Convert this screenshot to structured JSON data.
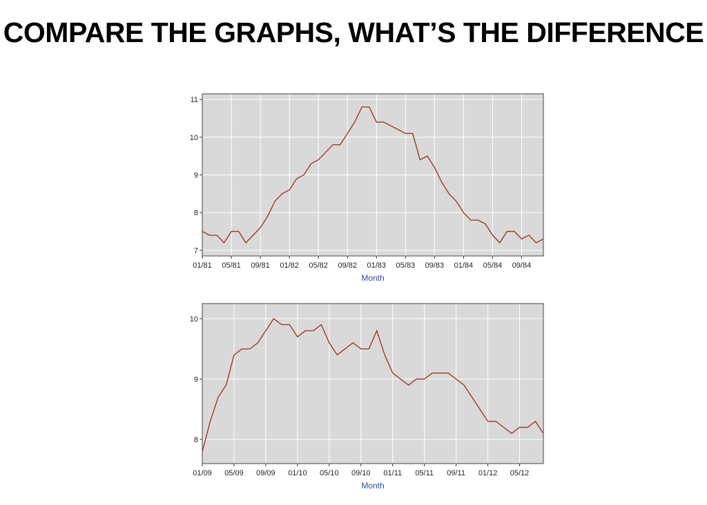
{
  "title": "COMPARE THE GRAPHS, WHAT’S THE DIFFERENCE",
  "colors": {
    "line": "#a33a22",
    "plot_bg": "#d9d9d9",
    "grid": "#ffffff",
    "axis_label": "#2a4ea0"
  },
  "chart_data": [
    {
      "type": "line",
      "title": "",
      "xlabel": "Month",
      "ylabel": "",
      "ylim": [
        6.85,
        11.15
      ],
      "yticks": [
        7,
        8,
        9,
        10,
        11
      ],
      "xticks": [
        "01/81",
        "05/81",
        "09/81",
        "01/82",
        "05/82",
        "09/82",
        "01/83",
        "05/83",
        "09/83",
        "01/84",
        "05/84",
        "09/84"
      ],
      "grid": true,
      "series": [
        {
          "values": [
            7.5,
            7.4,
            7.4,
            7.2,
            7.5,
            7.5,
            7.2,
            7.4,
            7.6,
            7.9,
            8.3,
            8.5,
            8.6,
            8.9,
            9.0,
            9.3,
            9.4,
            9.6,
            9.8,
            9.8,
            10.1,
            10.4,
            10.8,
            10.8,
            10.4,
            10.4,
            10.3,
            10.2,
            10.1,
            10.1,
            9.4,
            9.5,
            9.2,
            8.8,
            8.5,
            8.3,
            8.0,
            7.8,
            7.8,
            7.7,
            7.4,
            7.2,
            7.5,
            7.5,
            7.3,
            7.4,
            7.2,
            7.3
          ]
        }
      ]
    },
    {
      "type": "line",
      "title": "",
      "xlabel": "Month",
      "ylabel": "",
      "ylim": [
        7.6,
        10.25
      ],
      "yticks": [
        8,
        9,
        10
      ],
      "xticks": [
        "01/09",
        "05/09",
        "09/09",
        "01/10",
        "05/10",
        "09/10",
        "01/11",
        "05/11",
        "09/11",
        "01/12",
        "05/12"
      ],
      "grid": true,
      "series": [
        {
          "values": [
            7.8,
            8.3,
            8.7,
            8.9,
            9.4,
            9.5,
            9.5,
            9.6,
            9.8,
            10.0,
            9.9,
            9.9,
            9.7,
            9.8,
            9.8,
            9.9,
            9.6,
            9.4,
            9.5,
            9.6,
            9.5,
            9.5,
            9.8,
            9.4,
            9.1,
            9.0,
            8.9,
            9.0,
            9.0,
            9.1,
            9.1,
            9.1,
            9.0,
            8.9,
            8.7,
            8.5,
            8.3,
            8.3,
            8.2,
            8.1,
            8.2,
            8.2,
            8.3,
            8.1
          ]
        }
      ]
    }
  ]
}
